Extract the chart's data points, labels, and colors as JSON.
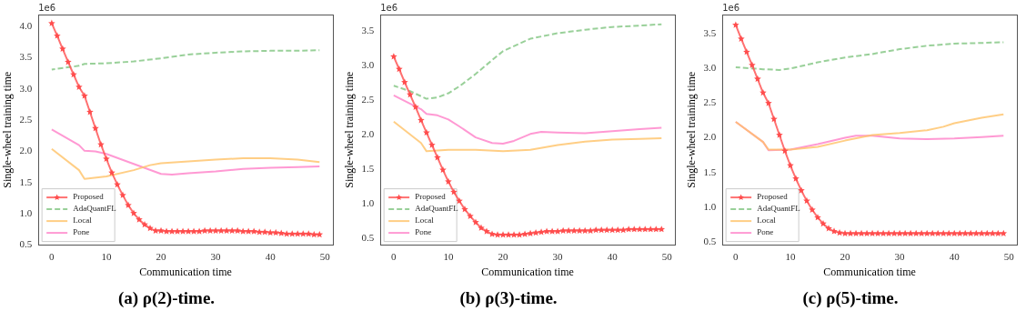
{
  "chart_data": [
    {
      "type": "line",
      "title": "(a) ρ(2)-time.",
      "xlabel": "Communication time",
      "ylabel": "Single-wheel training time",
      "annotations": [
        "1e6"
      ],
      "xlim": [
        -2.45,
        51.45
      ],
      "xticks": [
        0,
        10,
        20,
        30,
        40,
        50
      ],
      "ylim": [
        0.5,
        4.19
      ],
      "yticks": [
        0.5,
        {
          "value": 1,
          "label": "1.0"
        },
        1.5,
        {
          "value": 2,
          "label": "2.0"
        },
        2.5,
        {
          "value": 3,
          "label": "3.0"
        },
        3.5,
        {
          "value": 4,
          "label": "4.0"
        }
      ],
      "legend": "bottom left",
      "series": [
        {
          "name": "Proposed",
          "color": "#ff4d4d",
          "marker": "star",
          "line_style": "solid",
          "x": [
            0,
            1,
            2,
            3,
            4,
            5,
            6,
            7,
            8,
            9,
            10,
            11,
            12,
            13,
            14,
            15,
            16,
            17,
            18,
            19,
            20,
            21,
            22,
            23,
            24,
            25,
            26,
            27,
            28,
            29,
            30,
            31,
            32,
            33,
            34,
            35,
            36,
            37,
            38,
            39,
            40,
            41,
            42,
            43,
            44,
            45,
            46,
            47,
            48,
            49
          ],
          "values": [
            4.05,
            3.85,
            3.64,
            3.43,
            3.23,
            3.03,
            2.89,
            2.63,
            2.37,
            2.11,
            1.88,
            1.66,
            1.47,
            1.3,
            1.14,
            1.01,
            0.91,
            0.83,
            0.77,
            0.73,
            0.73,
            0.72,
            0.72,
            0.72,
            0.72,
            0.72,
            0.72,
            0.72,
            0.73,
            0.73,
            0.73,
            0.73,
            0.73,
            0.73,
            0.73,
            0.72,
            0.72,
            0.72,
            0.71,
            0.71,
            0.7,
            0.7,
            0.69,
            0.68,
            0.68,
            0.68,
            0.68,
            0.68,
            0.67,
            0.67
          ]
        },
        {
          "name": "AdaQuantFL",
          "color": "#7fc47f",
          "marker": "none",
          "line_style": "dashed",
          "x": [
            0,
            5,
            6,
            10,
            15,
            20,
            25,
            30,
            35,
            40,
            45,
            49
          ],
          "values": [
            3.31,
            3.37,
            3.4,
            3.41,
            3.44,
            3.49,
            3.55,
            3.58,
            3.6,
            3.61,
            3.61,
            3.62
          ]
        },
        {
          "name": "Local",
          "color": "#ffc266",
          "marker": "none",
          "line_style": "solid",
          "x": [
            0,
            5,
            6,
            10,
            15,
            18,
            20,
            25,
            30,
            35,
            40,
            45,
            49
          ],
          "values": [
            2.04,
            1.7,
            1.56,
            1.6,
            1.7,
            1.78,
            1.81,
            1.84,
            1.87,
            1.89,
            1.89,
            1.87,
            1.83
          ]
        },
        {
          "name": "Pone",
          "color": "#ff80c8",
          "marker": "none",
          "line_style": "solid",
          "x": [
            0,
            5,
            6,
            8,
            10,
            15,
            20,
            22,
            25,
            30,
            35,
            40,
            45,
            49
          ],
          "values": [
            2.35,
            2.1,
            2.01,
            2.0,
            1.96,
            1.8,
            1.64,
            1.63,
            1.65,
            1.68,
            1.72,
            1.74,
            1.75,
            1.76
          ]
        }
      ]
    },
    {
      "type": "line",
      "title": "(b) ρ(3)-time.",
      "xlabel": "Communication time",
      "ylabel": "Single-wheel training time",
      "annotations": [
        "1e6"
      ],
      "xlim": [
        -2.45,
        51.45
      ],
      "xticks": [
        0,
        10,
        20,
        30,
        40,
        50
      ],
      "ylim": [
        0.4,
        3.74
      ],
      "yticks": [
        0.5,
        {
          "value": 1,
          "label": "1.0"
        },
        1.5,
        {
          "value": 2,
          "label": "2.0"
        },
        2.5,
        {
          "value": 3,
          "label": "3.0"
        },
        3.5
      ],
      "legend": "bottom left",
      "series": [
        {
          "name": "Proposed",
          "color": "#ff4d4d",
          "marker": "star",
          "line_style": "solid",
          "x": [
            0,
            1,
            2,
            3,
            4,
            5,
            6,
            7,
            8,
            9,
            10,
            11,
            12,
            13,
            14,
            15,
            16,
            17,
            18,
            19,
            20,
            21,
            22,
            23,
            24,
            25,
            26,
            27,
            28,
            29,
            30,
            31,
            32,
            33,
            34,
            35,
            36,
            37,
            38,
            39,
            40,
            41,
            42,
            43,
            44,
            45,
            46,
            47,
            48,
            49
          ],
          "values": [
            3.13,
            2.95,
            2.76,
            2.58,
            2.4,
            2.21,
            2.03,
            1.85,
            1.67,
            1.49,
            1.32,
            1.17,
            1.04,
            0.92,
            0.82,
            0.73,
            0.65,
            0.6,
            0.56,
            0.55,
            0.55,
            0.55,
            0.55,
            0.55,
            0.56,
            0.57,
            0.58,
            0.59,
            0.6,
            0.6,
            0.6,
            0.61,
            0.61,
            0.61,
            0.61,
            0.61,
            0.61,
            0.62,
            0.62,
            0.62,
            0.62,
            0.62,
            0.62,
            0.63,
            0.63,
            0.63,
            0.63,
            0.63,
            0.63,
            0.63
          ]
        },
        {
          "name": "AdaQuantFL",
          "color": "#7fc47f",
          "marker": "none",
          "line_style": "dashed",
          "x": [
            0,
            3,
            6,
            8,
            10,
            12,
            15,
            18,
            20,
            25,
            30,
            35,
            40,
            45,
            49
          ],
          "values": [
            2.71,
            2.63,
            2.52,
            2.54,
            2.6,
            2.7,
            2.88,
            3.08,
            3.21,
            3.39,
            3.47,
            3.52,
            3.56,
            3.58,
            3.6
          ]
        },
        {
          "name": "Local",
          "color": "#ffc266",
          "marker": "none",
          "line_style": "solid",
          "x": [
            0,
            5,
            6,
            10,
            15,
            20,
            25,
            30,
            35,
            40,
            45,
            49
          ],
          "values": [
            2.19,
            1.88,
            1.76,
            1.78,
            1.78,
            1.76,
            1.78,
            1.85,
            1.9,
            1.93,
            1.94,
            1.95
          ]
        },
        {
          "name": "Pone",
          "color": "#ff80c8",
          "marker": "none",
          "line_style": "solid",
          "x": [
            0,
            5,
            6,
            8,
            10,
            12,
            15,
            18,
            20,
            22,
            25,
            27,
            30,
            35,
            40,
            45,
            49
          ],
          "values": [
            2.57,
            2.37,
            2.3,
            2.28,
            2.22,
            2.12,
            1.96,
            1.88,
            1.87,
            1.91,
            2.01,
            2.04,
            2.03,
            2.02,
            2.05,
            2.08,
            2.1
          ]
        }
      ]
    },
    {
      "type": "line",
      "title": "(c) ρ(5)-time.",
      "xlabel": "Communication time",
      "ylabel": "Single-wheel training time",
      "annotations": [
        "1e6"
      ],
      "xlim": [
        -2.45,
        51.45
      ],
      "xticks": [
        0,
        10,
        20,
        30,
        40,
        50
      ],
      "ylim": [
        0.45,
        3.78
      ],
      "yticks": [
        0.5,
        {
          "value": 1,
          "label": "1.0"
        },
        1.5,
        {
          "value": 2,
          "label": "2.0"
        },
        2.5,
        {
          "value": 3,
          "label": "3.0"
        },
        3.5
      ],
      "legend": "bottom left",
      "series": [
        {
          "name": "Proposed",
          "color": "#ff4d4d",
          "marker": "star",
          "line_style": "solid",
          "x": [
            0,
            1,
            2,
            3,
            4,
            5,
            6,
            7,
            8,
            9,
            10,
            11,
            12,
            13,
            14,
            15,
            16,
            17,
            18,
            19,
            20,
            21,
            22,
            23,
            24,
            25,
            26,
            27,
            28,
            29,
            30,
            31,
            32,
            33,
            34,
            35,
            36,
            37,
            38,
            39,
            40,
            41,
            42,
            43,
            44,
            45,
            46,
            47,
            48,
            49
          ],
          "values": [
            3.63,
            3.43,
            3.24,
            3.05,
            2.85,
            2.65,
            2.5,
            2.27,
            2.04,
            1.81,
            1.6,
            1.41,
            1.24,
            1.09,
            0.96,
            0.85,
            0.76,
            0.69,
            0.65,
            0.63,
            0.62,
            0.62,
            0.62,
            0.62,
            0.62,
            0.62,
            0.62,
            0.62,
            0.62,
            0.62,
            0.62,
            0.62,
            0.62,
            0.62,
            0.62,
            0.62,
            0.62,
            0.62,
            0.62,
            0.62,
            0.62,
            0.62,
            0.62,
            0.62,
            0.62,
            0.62,
            0.62,
            0.62,
            0.62,
            0.62
          ]
        },
        {
          "name": "AdaQuantFL",
          "color": "#7fc47f",
          "marker": "none",
          "line_style": "dashed",
          "x": [
            0,
            5,
            8,
            10,
            15,
            20,
            25,
            30,
            35,
            40,
            45,
            49
          ],
          "values": [
            3.02,
            2.99,
            2.98,
            3.0,
            3.09,
            3.16,
            3.21,
            3.28,
            3.33,
            3.36,
            3.37,
            3.38
          ]
        },
        {
          "name": "Local",
          "color": "#ffc266",
          "marker": "none",
          "line_style": "solid",
          "x": [
            0,
            5,
            6,
            10,
            15,
            20,
            25,
            30,
            35,
            38,
            40,
            45,
            49
          ],
          "values": [
            2.23,
            1.94,
            1.83,
            1.83,
            1.87,
            1.96,
            2.04,
            2.07,
            2.11,
            2.16,
            2.21,
            2.29,
            2.34
          ]
        },
        {
          "name": "Pone",
          "color": "#ff80c8",
          "marker": "none",
          "line_style": "solid",
          "x": [
            0,
            5,
            6,
            10,
            15,
            20,
            22,
            25,
            30,
            35,
            40,
            45,
            49
          ],
          "values": [
            2.23,
            1.94,
            1.82,
            1.83,
            1.91,
            2.0,
            2.03,
            2.03,
            1.99,
            1.98,
            1.99,
            2.01,
            2.03
          ]
        }
      ]
    }
  ]
}
